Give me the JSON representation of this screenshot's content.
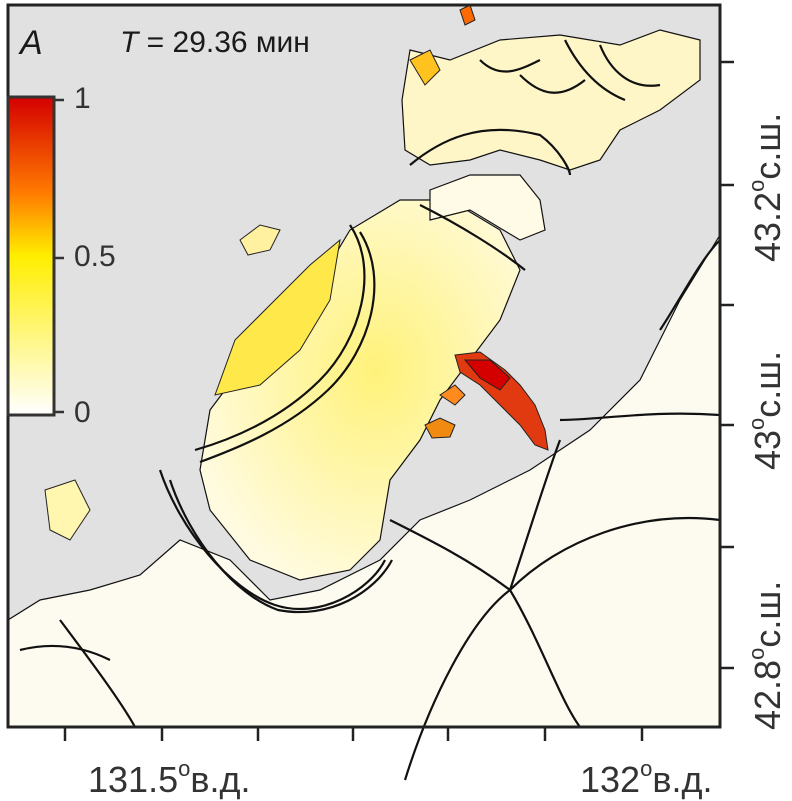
{
  "panel_label": "A",
  "time": {
    "symbol": "T",
    "text": " = 29.36 мин"
  },
  "colorbar": {
    "ticks": [
      "1",
      "0.5",
      "0"
    ],
    "colors": [
      "#d40000",
      "#ff7a00",
      "#ffee00",
      "#ffffff"
    ]
  },
  "axes": {
    "x_labels": [
      {
        "num": "131.5",
        "deg": "o",
        "unit": "в.д."
      },
      {
        "num": "132",
        "deg": "o",
        "unit": "в.д."
      }
    ],
    "y_labels": [
      {
        "num": "43.2",
        "deg": "o",
        "unit": "с.ш."
      },
      {
        "num": "43",
        "deg": "o",
        "unit": "с.ш."
      },
      {
        "num": "42.8",
        "deg": "o",
        "unit": "с.ш."
      }
    ]
  },
  "colors": {
    "land": "#e1e1e1",
    "frame": "#222222",
    "max": "#d40000"
  }
}
